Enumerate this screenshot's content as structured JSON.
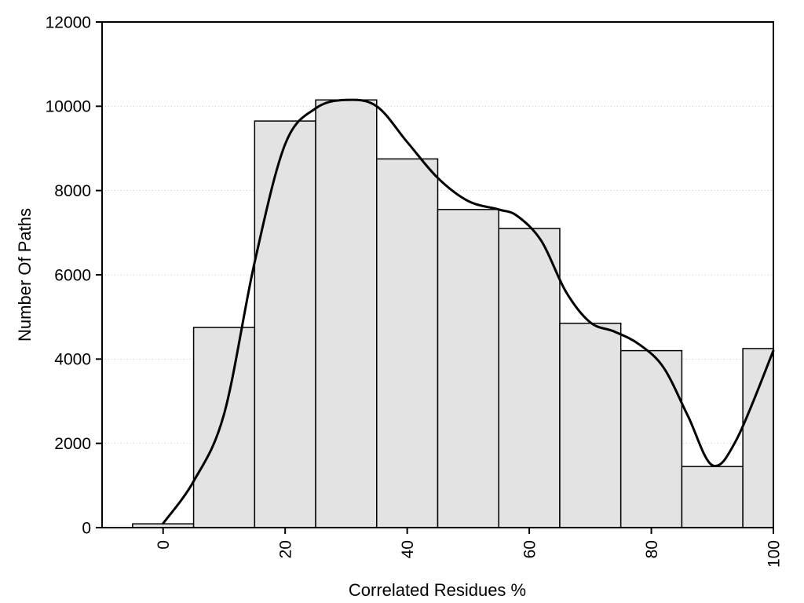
{
  "figure": {
    "background": "#ffffff"
  },
  "chart_data": {
    "type": "bar",
    "subtype": "histogram-with-density-curve",
    "title": "",
    "xlabel": "Correlated Residues %",
    "ylabel": "Number Of Paths",
    "xlim": [
      -10,
      100
    ],
    "ylim": [
      0,
      12000
    ],
    "xticks": [
      0,
      20,
      40,
      60,
      80,
      100
    ],
    "yticks": [
      0,
      2000,
      4000,
      6000,
      8000,
      10000,
      12000
    ],
    "grid": "horizontal-dotted",
    "grid_color": "#c8c8c8",
    "bar_fill": "#e3e3e3",
    "bar_stroke": "#000000",
    "curve_color": "#000000",
    "bars": [
      {
        "x0": -5,
        "x1": 5,
        "value": 90
      },
      {
        "x0": 5,
        "x1": 15,
        "value": 4750
      },
      {
        "x0": 15,
        "x1": 25,
        "value": 9650
      },
      {
        "x0": 25,
        "x1": 35,
        "value": 10150
      },
      {
        "x0": 35,
        "x1": 45,
        "value": 8750
      },
      {
        "x0": 45,
        "x1": 55,
        "value": 7550
      },
      {
        "x0": 55,
        "x1": 65,
        "value": 7100
      },
      {
        "x0": 65,
        "x1": 75,
        "value": 4850
      },
      {
        "x0": 75,
        "x1": 85,
        "value": 4200
      },
      {
        "x0": 85,
        "x1": 95,
        "value": 1450
      },
      {
        "x0": 95,
        "x1": 100,
        "value": 4250
      }
    ],
    "curve": {
      "x": [
        0,
        5,
        10,
        15,
        20,
        25,
        30,
        35,
        40,
        45,
        50,
        55,
        58,
        62,
        66,
        70,
        74,
        78,
        82,
        86,
        90,
        94,
        100
      ],
      "y": [
        100,
        1100,
        2700,
        6300,
        9100,
        9950,
        10150,
        10000,
        9150,
        8300,
        7750,
        7550,
        7400,
        6800,
        5600,
        4870,
        4650,
        4350,
        3800,
        2650,
        1480,
        2100,
        4200
      ]
    }
  }
}
